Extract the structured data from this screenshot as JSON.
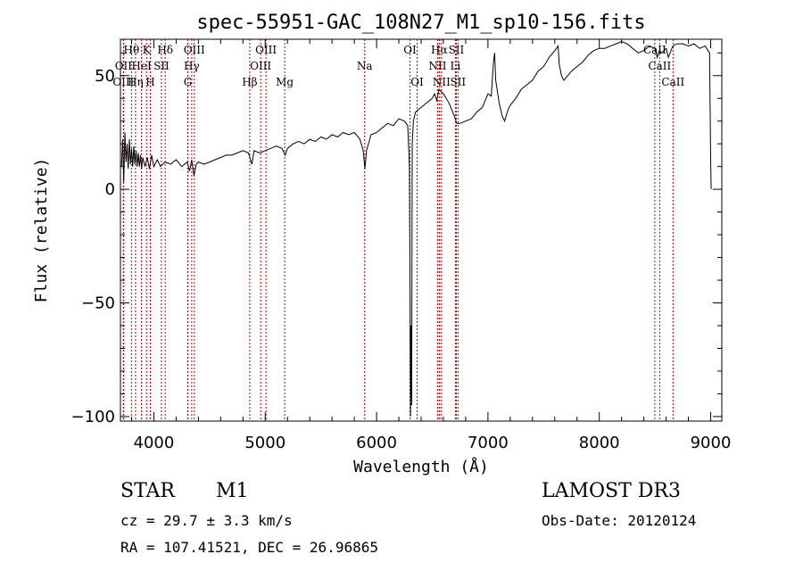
{
  "chart_data": {
    "type": "line",
    "title": "spec-55951-GAC_108N27_M1_sp10-156.fits",
    "xlabel": "Wavelength (Å)",
    "ylabel": "Flux (relative)",
    "xlim": [
      3700,
      9100
    ],
    "ylim": [
      -102,
      66
    ],
    "xticks": [
      4000,
      5000,
      6000,
      7000,
      8000,
      9000
    ],
    "yticks": [
      -100,
      -50,
      0,
      50
    ],
    "xtick_labels": [
      "4000",
      "5000",
      "6000",
      "7000",
      "8000",
      "9000"
    ],
    "ytick_labels": [
      "−100",
      "−50",
      "0",
      "50"
    ],
    "series": [
      {
        "name": "flux",
        "points": [
          [
            3710,
            10
          ],
          [
            3720,
            22
          ],
          [
            3730,
            3
          ],
          [
            3740,
            25
          ],
          [
            3750,
            12
          ],
          [
            3760,
            20
          ],
          [
            3770,
            9
          ],
          [
            3780,
            22
          ],
          [
            3790,
            11
          ],
          [
            3800,
            18
          ],
          [
            3810,
            10
          ],
          [
            3820,
            19
          ],
          [
            3830,
            11
          ],
          [
            3840,
            17
          ],
          [
            3850,
            10
          ],
          [
            3860,
            16
          ],
          [
            3870,
            10
          ],
          [
            3880,
            15
          ],
          [
            3890,
            9
          ],
          [
            3900,
            14
          ],
          [
            3920,
            10
          ],
          [
            3940,
            14
          ],
          [
            3960,
            9
          ],
          [
            3980,
            15
          ],
          [
            4000,
            10
          ],
          [
            4030,
            13
          ],
          [
            4060,
            10
          ],
          [
            4100,
            12
          ],
          [
            4150,
            11
          ],
          [
            4200,
            13
          ],
          [
            4250,
            10
          ],
          [
            4300,
            12
          ],
          [
            4320,
            8
          ],
          [
            4340,
            13
          ],
          [
            4360,
            6
          ],
          [
            4380,
            11
          ],
          [
            4400,
            12
          ],
          [
            4450,
            11
          ],
          [
            4500,
            12
          ],
          [
            4550,
            13
          ],
          [
            4600,
            14
          ],
          [
            4650,
            15
          ],
          [
            4700,
            15
          ],
          [
            4750,
            16
          ],
          [
            4800,
            17
          ],
          [
            4850,
            16
          ],
          [
            4880,
            11
          ],
          [
            4900,
            17
          ],
          [
            4950,
            16
          ],
          [
            5000,
            17
          ],
          [
            5050,
            18
          ],
          [
            5100,
            19
          ],
          [
            5150,
            18
          ],
          [
            5180,
            15
          ],
          [
            5200,
            18
          ],
          [
            5250,
            20
          ],
          [
            5300,
            21
          ],
          [
            5350,
            20
          ],
          [
            5400,
            22
          ],
          [
            5450,
            21
          ],
          [
            5500,
            23
          ],
          [
            5550,
            22
          ],
          [
            5600,
            24
          ],
          [
            5650,
            23
          ],
          [
            5700,
            25
          ],
          [
            5750,
            24
          ],
          [
            5800,
            25
          ],
          [
            5850,
            22
          ],
          [
            5880,
            17
          ],
          [
            5895,
            9
          ],
          [
            5910,
            17
          ],
          [
            5950,
            24
          ],
          [
            6000,
            25
          ],
          [
            6050,
            27
          ],
          [
            6100,
            29
          ],
          [
            6150,
            28
          ],
          [
            6200,
            31
          ],
          [
            6250,
            30
          ],
          [
            6280,
            28
          ],
          [
            6295,
            10
          ],
          [
            6300,
            -40
          ],
          [
            6305,
            -100
          ],
          [
            6310,
            -60
          ],
          [
            6315,
            -95
          ],
          [
            6320,
            20
          ],
          [
            6330,
            30
          ],
          [
            6350,
            34
          ],
          [
            6400,
            36
          ],
          [
            6450,
            38
          ],
          [
            6500,
            40
          ],
          [
            6520,
            42
          ],
          [
            6540,
            39
          ],
          [
            6560,
            44
          ],
          [
            6580,
            43
          ],
          [
            6600,
            42
          ],
          [
            6650,
            38
          ],
          [
            6700,
            32
          ],
          [
            6720,
            29
          ],
          [
            6750,
            29
          ],
          [
            6800,
            30
          ],
          [
            6850,
            31
          ],
          [
            6900,
            34
          ],
          [
            6950,
            36
          ],
          [
            7000,
            42
          ],
          [
            7030,
            41
          ],
          [
            7050,
            56
          ],
          [
            7060,
            60
          ],
          [
            7070,
            48
          ],
          [
            7100,
            38
          ],
          [
            7130,
            32
          ],
          [
            7150,
            30
          ],
          [
            7180,
            35
          ],
          [
            7200,
            37
          ],
          [
            7250,
            40
          ],
          [
            7300,
            44
          ],
          [
            7350,
            46
          ],
          [
            7400,
            48
          ],
          [
            7450,
            52
          ],
          [
            7500,
            54
          ],
          [
            7550,
            58
          ],
          [
            7600,
            61
          ],
          [
            7630,
            63
          ],
          [
            7640,
            55
          ],
          [
            7660,
            50
          ],
          [
            7680,
            48
          ],
          [
            7700,
            49
          ],
          [
            7750,
            52
          ],
          [
            7800,
            54
          ],
          [
            7850,
            56
          ],
          [
            7900,
            59
          ],
          [
            7950,
            61
          ],
          [
            8000,
            62
          ],
          [
            8050,
            62
          ],
          [
            8100,
            63
          ],
          [
            8150,
            64
          ],
          [
            8200,
            65
          ],
          [
            8250,
            64
          ],
          [
            8300,
            62
          ],
          [
            8350,
            60
          ],
          [
            8400,
            61
          ],
          [
            8450,
            63
          ],
          [
            8500,
            62
          ],
          [
            8520,
            58
          ],
          [
            8540,
            61
          ],
          [
            8560,
            60
          ],
          [
            8600,
            62
          ],
          [
            8620,
            58
          ],
          [
            8660,
            63
          ],
          [
            8700,
            64
          ],
          [
            8750,
            64
          ],
          [
            8800,
            63
          ],
          [
            8850,
            64
          ],
          [
            8900,
            62
          ],
          [
            8950,
            63
          ],
          [
            8990,
            60
          ],
          [
            9000,
            13
          ],
          [
            9005,
            0
          ]
        ]
      }
    ],
    "line_markers": [
      {
        "wl": 3799,
        "label": "Hθ",
        "row": 0
      },
      {
        "wl": 3727,
        "label": "OII",
        "row": 1
      },
      {
        "wl": 3727,
        "label": "OIII",
        "row": 2
      },
      {
        "wl": 3835,
        "label": "Hη",
        "row": 2
      },
      {
        "wl": 3889,
        "label": "HeI",
        "row": 1
      },
      {
        "wl": 3934,
        "label": "K",
        "row": 0
      },
      {
        "wl": 3968,
        "label": "H",
        "row": 2
      },
      {
        "wl": 4068,
        "label": "SII",
        "row": 1
      },
      {
        "wl": 4102,
        "label": "Hδ",
        "row": 0
      },
      {
        "wl": 4340,
        "label": "Hγ",
        "row": 1
      },
      {
        "wl": 4363,
        "label": "OIII",
        "row": 0
      },
      {
        "wl": 4305,
        "label": "G",
        "row": 2
      },
      {
        "wl": 4861,
        "label": "Hβ",
        "row": 2
      },
      {
        "wl": 4959,
        "label": "OIII",
        "row": 1
      },
      {
        "wl": 5007,
        "label": "OIII",
        "row": 0
      },
      {
        "wl": 5175,
        "label": "Mg",
        "row": 2
      },
      {
        "wl": 5893,
        "label": "Na",
        "row": 1
      },
      {
        "wl": 6300,
        "label": "OI",
        "row": 0
      },
      {
        "wl": 6364,
        "label": "OI",
        "row": 2
      },
      {
        "wl": 6563,
        "label": "Hα",
        "row": 0
      },
      {
        "wl": 6548,
        "label": "NII",
        "row": 1
      },
      {
        "wl": 6583,
        "label": "NII",
        "row": 2
      },
      {
        "wl": 6716,
        "label": "SII",
        "row": 0
      },
      {
        "wl": 6708,
        "label": "Li",
        "row": 1
      },
      {
        "wl": 6731,
        "label": "SII",
        "row": 2
      },
      {
        "wl": 8498,
        "label": "CaII",
        "row": 0
      },
      {
        "wl": 8542,
        "label": "CaII",
        "row": 1
      },
      {
        "wl": 8662,
        "label": "CaII",
        "row": 2
      }
    ]
  },
  "info": {
    "object_type": "STAR",
    "subclass": "M1",
    "survey": "LAMOST DR3",
    "cz": "cz = 29.7 ± 3.3 km/s",
    "obs_date": "Obs-Date: 20120124",
    "coords": "RA = 107.41521, DEC =  26.96865"
  }
}
